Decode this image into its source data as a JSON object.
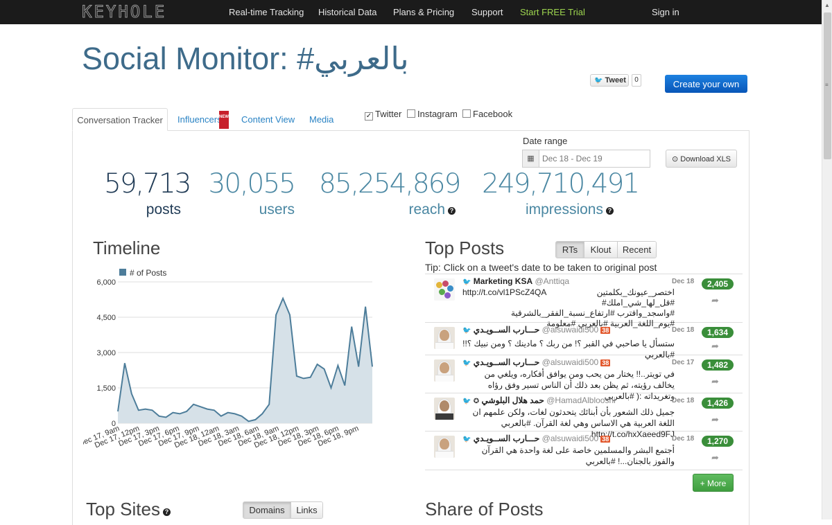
{
  "nav": {
    "logo": "KEYHOLE",
    "items": [
      "Real-time Tracking",
      "Historical Data",
      "Plans & Pricing",
      "Support"
    ],
    "trial": "Start FREE Trial",
    "signin": "Sign in"
  },
  "header": {
    "title": "Social Monitor: #بالعربي",
    "tweet_label": "Tweet",
    "tweet_count": "0",
    "create_label": "Create your own"
  },
  "tabs": [
    "Conversation Tracker",
    "Influencers",
    "Content View",
    "Media"
  ],
  "new_badge": "NEW",
  "platforms": [
    {
      "label": "Twitter",
      "checked": true
    },
    {
      "label": "Instagram",
      "checked": false
    },
    {
      "label": "Facebook",
      "checked": false
    }
  ],
  "date_range": {
    "label": "Date range",
    "value": "Dec 18 - Dec 19"
  },
  "download_label": "Download XLS",
  "stats": [
    {
      "value": "59,713",
      "label": "posts"
    },
    {
      "value": "30,055",
      "label": "users"
    },
    {
      "value": "85,254,869",
      "label": "reach"
    },
    {
      "value": "249,710,491",
      "label": "impressions"
    }
  ],
  "timeline": {
    "title": "Timeline"
  },
  "chart_data": {
    "type": "area",
    "title": "Timeline",
    "legend": [
      "# of Posts"
    ],
    "legend_position": "top-left",
    "ylim": [
      0,
      6000
    ],
    "yticks": [
      "6,000",
      "4,500",
      "3,000",
      "1,500",
      "0"
    ],
    "xticks": [
      "Dec 17, 9am",
      "Dec 17, 12pm",
      "Dec 17, 3pm",
      "Dec 17, 6pm",
      "Dec 17, 9pm",
      "Dec 18, 12am",
      "Dec 18, 3am",
      "Dec 18, 6am",
      "Dec 18, 9am",
      "Dec 18, 12pm",
      "Dec 18, 3pm",
      "Dec 18, 6pm",
      "Dec 18, 9pm"
    ],
    "grid": true,
    "color": "#4d7d9a",
    "fill": "#d6e1e8",
    "series": [
      {
        "name": "# of Posts",
        "values": [
          500,
          2550,
          1250,
          550,
          600,
          550,
          300,
          250,
          450,
          400,
          500,
          800,
          700,
          600,
          550,
          300,
          450,
          400,
          300,
          80,
          150,
          400,
          800,
          4600,
          5300,
          4600,
          2000,
          1900,
          1950,
          2500,
          2300,
          1500,
          2450,
          1600,
          4100,
          2400,
          4950,
          2400
        ]
      }
    ]
  },
  "top_posts": {
    "title": "Top Posts",
    "sort_options": [
      "RTs",
      "Klout",
      "Recent"
    ],
    "active_sort": "RTs",
    "tip": "Tip: Click on a tweet's date to be taken to original post",
    "posts": [
      {
        "name": "Marketing KSA",
        "handle": "@Anttiqa",
        "klout": "",
        "date": "Dec 18",
        "count": "2,405",
        "line1": "http://t.co/vl1PScZ4QA",
        "line2": "اختصر_عيونك_بكلمتين #قل_لها_شي_املك#",
        "text": "#واسجد_واقترب #ارتفاع_نسبة_الفقر_بالشرقية #يوم_اللغة_العربية #بالعربي #معلومة"
      },
      {
        "name": "حـــارب الســويـدي",
        "handle": "@alsuwaidi500",
        "klout": "38",
        "date": "Dec 18",
        "count": "1,634",
        "text": "ستسأل يا صاحبي في القبر ؟! من ربك ؟ مادينك ؟ ومن نبيك ؟!! #بالعربي"
      },
      {
        "name": "حـــارب الســويـدي",
        "handle": "@alsuwaidi500",
        "klout": "38",
        "date": "Dec 17",
        "count": "1,482",
        "text": "في تويتر..!! يختار من يحب ومن يوافق أفكاره، ويلغي من يخالف رؤيته، ثم يظن بعد ذلك أن الناس تسير وفق رؤاه وتغريداته :( #بالعربي"
      },
      {
        "name": "حمد هلال البلوشي",
        "handle": "@HamadAlblooshi",
        "klout": "",
        "date": "Dec 18",
        "count": "1,426",
        "text": "جميل ذلك الشعور بأن أبنائك يتحدثون لغات، ولكن علمهم ان اللغة العربية هي الاساس وهي لغة القرآن. #بالعربي",
        "link": "http://t.co/hxXaeed9FJ"
      },
      {
        "name": "حـــارب الســويـدي",
        "handle": "@alsuwaidi500",
        "klout": "38",
        "date": "Dec 18",
        "count": "1,270",
        "text": "أجتمع البشر والمسلمين خاصة على لغة واحدة هي القرآن والفوز بالجنان...! #بالعربي"
      }
    ],
    "more_label": "+ More"
  },
  "top_sites": {
    "title": "Top Sites",
    "options": [
      "Domains",
      "Links"
    ],
    "active": "Domains"
  },
  "share_of_posts": {
    "title": "Share of Posts"
  }
}
